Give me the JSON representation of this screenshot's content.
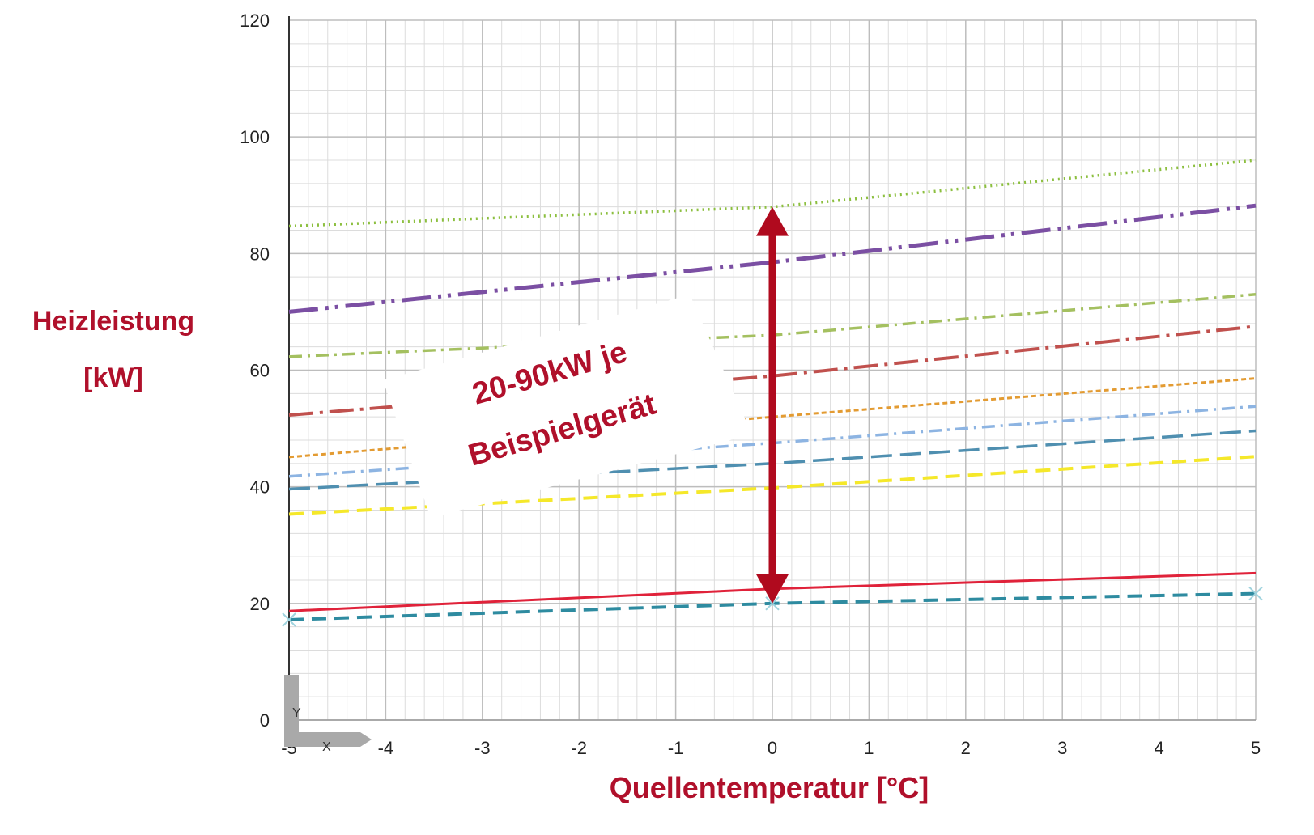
{
  "y_axis_label_line1": "Heizleistung",
  "y_axis_label_line2": "[kW]",
  "x_axis_label": "Quellentemperatur [°C]",
  "callout": {
    "line1": "20-90kW je",
    "line2": "Beispielgerät",
    "arrow_range": [
      20,
      88
    ],
    "arrow_x": 0,
    "arrow_color": "#b00a1e"
  },
  "axis_glyphs": {
    "y": "Y",
    "x": "X"
  },
  "chart_data": {
    "type": "line",
    "xlabel": "Quellentemperatur [°C]",
    "ylabel": "Heizleistung [kW]",
    "xlim": [
      -5,
      5
    ],
    "ylim": [
      0,
      120
    ],
    "x_ticks": [
      -5,
      -4,
      -3,
      -2,
      -1,
      0,
      1,
      2,
      3,
      4,
      5
    ],
    "y_ticks": [
      0,
      20,
      40,
      60,
      80,
      100,
      120
    ],
    "grid": true,
    "legend": "none",
    "series": [
      {
        "color": "#8cbf3f",
        "style": "dotted",
        "values": [
          [
            -5,
            84.7
          ],
          [
            0,
            88
          ],
          [
            5,
            96
          ]
        ]
      },
      {
        "color": "#7b4fa3",
        "style": "long-dash-dot-dot",
        "values": [
          [
            -5,
            70
          ],
          [
            0,
            78.5
          ],
          [
            5,
            88.2
          ]
        ]
      },
      {
        "color": "#a4c060",
        "style": "dash-dot",
        "values": [
          [
            -5,
            62.3
          ],
          [
            0,
            66
          ],
          [
            5,
            73
          ]
        ]
      },
      {
        "color": "#c0504d",
        "style": "long-dash-dot",
        "values": [
          [
            -5,
            52.3
          ],
          [
            0,
            59
          ],
          [
            5,
            67.5
          ]
        ]
      },
      {
        "color": "#e39b32",
        "style": "short-dash",
        "values": [
          [
            -5,
            45.1
          ],
          [
            0,
            52
          ],
          [
            5,
            58.6
          ]
        ]
      },
      {
        "color": "#8db4e2",
        "style": "dash-dot",
        "values": [
          [
            -5,
            41.8
          ],
          [
            0,
            47.5
          ],
          [
            5,
            53.8
          ]
        ]
      },
      {
        "color": "#4f8fb0",
        "style": "long-dash",
        "values": [
          [
            -5,
            39.6
          ],
          [
            0,
            44
          ],
          [
            5,
            49.6
          ]
        ]
      },
      {
        "color": "#f5e82a",
        "style": "dash",
        "values": [
          [
            -5,
            35.3
          ],
          [
            0,
            39.8
          ],
          [
            5,
            45.2
          ]
        ]
      },
      {
        "color": "#e0223a",
        "style": "solid",
        "values": [
          [
            -5,
            18.7
          ],
          [
            0,
            22.5
          ],
          [
            5,
            25.2
          ]
        ]
      },
      {
        "color": "#2e8ba0",
        "style": "dash",
        "values": [
          [
            -5,
            17.2
          ],
          [
            0,
            20
          ],
          [
            5,
            21.7
          ]
        ]
      }
    ]
  }
}
